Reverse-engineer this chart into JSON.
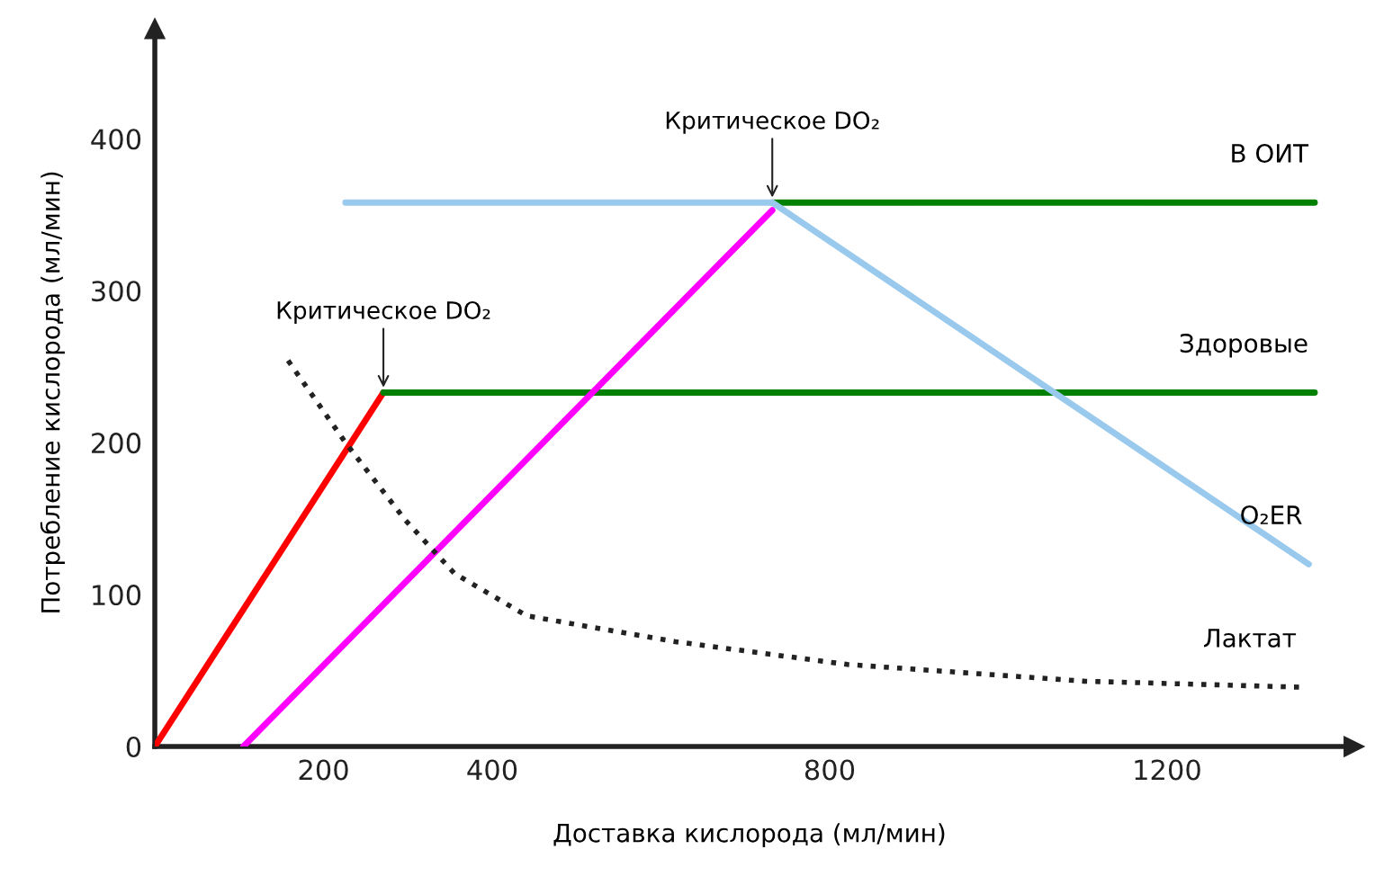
{
  "chart_data": {
    "type": "line",
    "xlabel": "Доставка кислорода (мл/мин)",
    "ylabel": "Потребление кислорода (мл/мин)",
    "xlim": [
      0,
      1410
    ],
    "xticks": [
      200,
      400,
      800,
      1200
    ],
    "ylim": [
      0,
      466
    ],
    "yticks": [
      0,
      100,
      200,
      300,
      400
    ],
    "grid": false,
    "legend": false,
    "series": [
      {
        "color": "#ff0000",
        "x": [
          0,
          271
        ],
        "values": [
          0,
          233
        ]
      },
      {
        "name": "Здоровые",
        "color": "#008000",
        "x": [
          271,
          1375
        ],
        "values": [
          233,
          233
        ]
      },
      {
        "color": "#ff00ff",
        "x": [
          105,
          732
        ],
        "values": [
          0,
          353
        ]
      },
      {
        "name": "В ОИТ",
        "color": "#008000",
        "x": [
          732,
          1375
        ],
        "values": [
          358,
          358
        ]
      },
      {
        "name": "O₂ER",
        "color": "#99c9ec",
        "x": [
          226,
          732,
          1368
        ],
        "values": [
          358,
          358,
          120
        ]
      },
      {
        "name": "Лактат",
        "color": "#222222",
        "line_style": "dotted",
        "x": [
          158,
          226,
          297,
          355,
          441,
          617,
          821,
          1102,
          1361
        ],
        "values": [
          254,
          200,
          149,
          114,
          86,
          69,
          54,
          43,
          39
        ]
      }
    ],
    "annotations": [
      {
        "text": "Критическое DO₂",
        "x": 271,
        "y": 233
      },
      {
        "text": "Критическое DO₂",
        "x": 732,
        "y": 358
      }
    ]
  }
}
